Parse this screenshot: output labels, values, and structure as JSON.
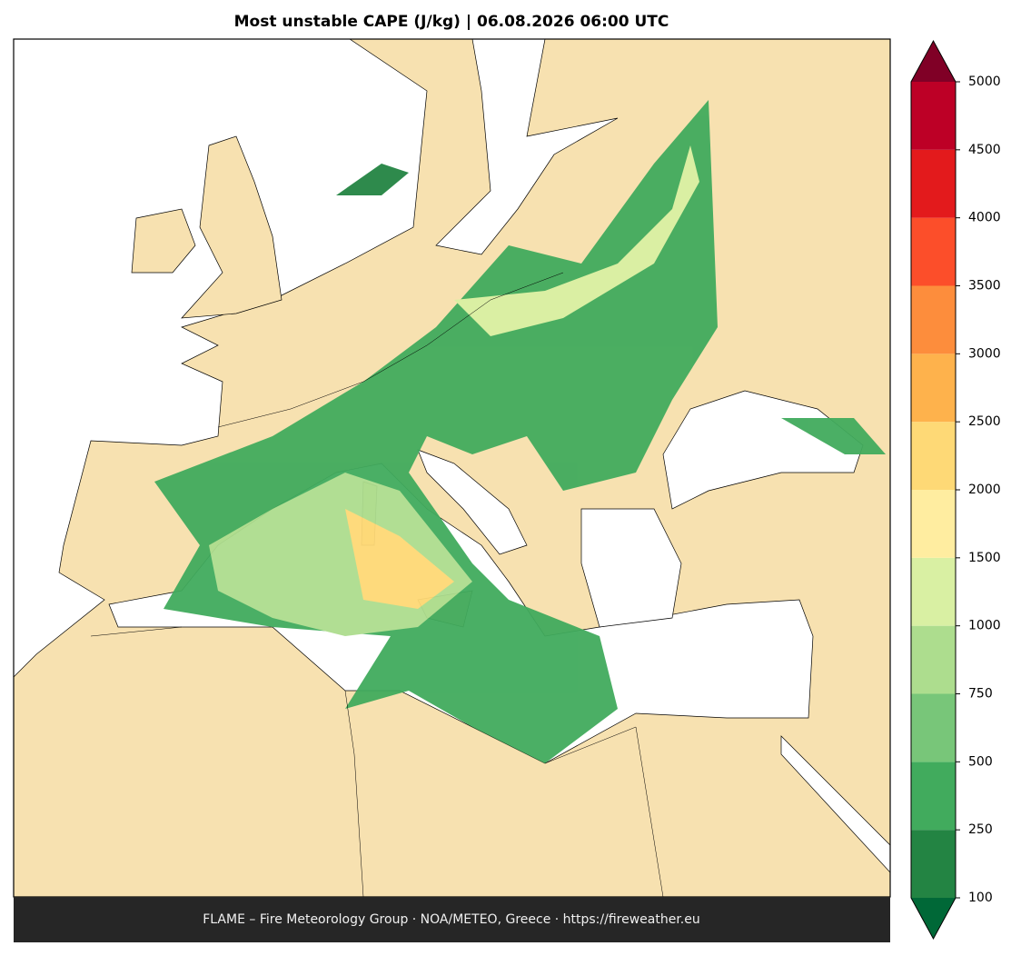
{
  "title": "Most unstable CAPE (J/kg)  |  06.08.2026 06:00 UTC",
  "footer": "FLAME – Fire Meteorology Group · NOA/METEO, Greece · https://fireweather.eu",
  "colorbar": {
    "levels": [
      100,
      250,
      500,
      750,
      1000,
      1500,
      2000,
      2500,
      3000,
      3500,
      4000,
      4500,
      5000
    ],
    "colors": [
      "#238443",
      "#41ab5d",
      "#78c679",
      "#addd8e",
      "#d9f0a3",
      "#ffeda0",
      "#fed976",
      "#feb24c",
      "#fd8d3c",
      "#fc4e2a",
      "#e31a1c",
      "#bd0026"
    ],
    "under_color": "#006837",
    "over_color": "#800026"
  }
}
